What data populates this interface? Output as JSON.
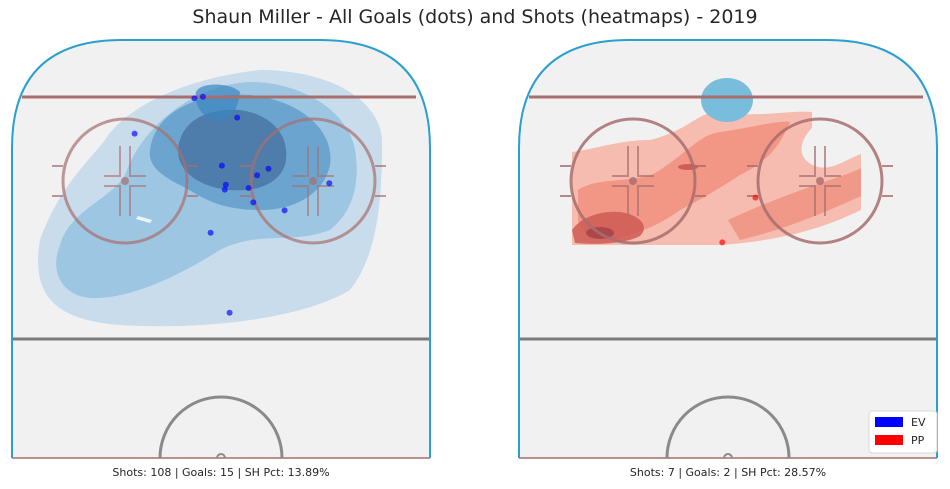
{
  "figure": {
    "title": "Shaun Miller - All Goals (dots) and Shots (heatmaps) - 2019",
    "legend": {
      "placement": "bottom-right",
      "entries": [
        {
          "label": "EV",
          "color": "#0000ff"
        },
        {
          "label": "PP",
          "color": "#ff0000"
        }
      ]
    }
  },
  "chart_data": [
    {
      "type": "scatter",
      "panel": "left",
      "situation": "EV",
      "caption": "Shots: 108 | Goals: 15 | SH Pct: 13.89%",
      "shots": 108,
      "goals": 15,
      "sh_pct": "13.89%",
      "x": [
        -91,
        -28,
        -19,
        17,
        1,
        29,
        50,
        34,
        5,
        4,
        38,
        67,
        -11,
        9,
        114
      ],
      "y": [
        64,
        86,
        87,
        74,
        44,
        30,
        42,
        21,
        32,
        29,
        38,
        16,
        2,
        -48,
        33
      ],
      "heatmap_color": "#4a90c8",
      "dot_color": "#0000ff"
    },
    {
      "type": "scatter",
      "panel": "right",
      "situation": "PP",
      "caption": "Shots: 7 | Goals: 2 | SH Pct: 28.57%",
      "shots": 7,
      "goals": 2,
      "sh_pct": "28.57%",
      "x": [
        -6,
        29
      ],
      "y": [
        -4,
        24
      ],
      "heatmap_color": "#f08070",
      "dot_color": "#ff0000"
    }
  ]
}
